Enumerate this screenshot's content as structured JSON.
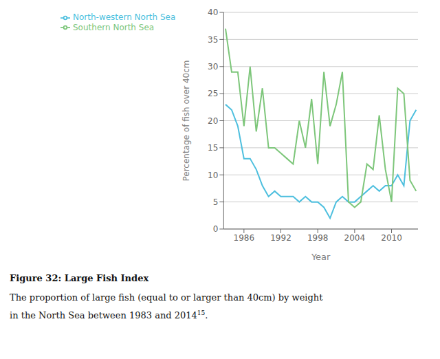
{
  "chart_data": {
    "type": "line",
    "title": "Figure 32: Large Fish Index",
    "xlabel": "Year",
    "ylabel": "Percentage of fish over 40cm",
    "x": [
      1983,
      1984,
      1985,
      1986,
      1987,
      1988,
      1989,
      1990,
      1991,
      1992,
      1993,
      1994,
      1995,
      1996,
      1997,
      1998,
      1999,
      2000,
      2001,
      2002,
      2003,
      2004,
      2005,
      2006,
      2007,
      2008,
      2009,
      2010,
      2011,
      2012,
      2013,
      2014
    ],
    "series": [
      {
        "name": "North-western North Sea",
        "color": "#4DBFDE",
        "values": [
          23,
          22,
          19,
          13,
          13,
          11,
          8,
          6,
          7,
          6,
          6,
          6,
          5,
          6,
          5,
          5,
          4,
          2,
          5,
          6,
          5,
          5,
          6,
          7,
          8,
          7,
          8,
          8,
          10,
          8,
          20,
          22
        ]
      },
      {
        "name": "Southern North Sea",
        "color": "#7DC67A",
        "values": [
          37,
          29,
          29,
          19,
          30,
          18,
          26,
          15,
          15,
          14,
          13,
          12,
          20,
          15,
          24,
          12,
          29,
          19,
          23,
          29,
          5,
          4,
          5,
          12,
          11,
          21,
          11,
          5,
          26,
          25,
          9,
          7
        ]
      }
    ],
    "xlim": [
      1982.7,
      2014.3
    ],
    "ylim": [
      0,
      40
    ],
    "xticks": [
      1986,
      1992,
      1998,
      2004,
      2010
    ],
    "yticks": [
      0,
      5,
      10,
      15,
      20,
      25,
      30,
      35,
      40
    ],
    "grid": true,
    "legend": "upper left",
    "annotations": [
      "The proportion of large fish (equal to or larger than 40cm) by weight",
      "in the North Sea between 1983 and 2014",
      "15",
      "."
    ]
  }
}
